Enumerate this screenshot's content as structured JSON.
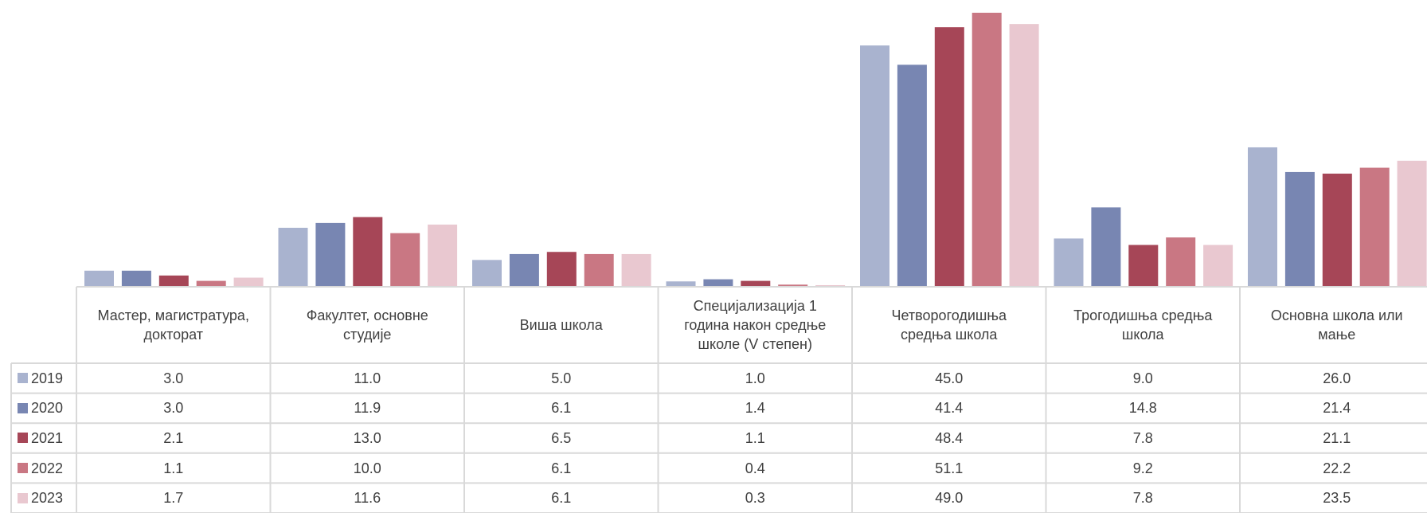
{
  "chart_data": {
    "type": "bar",
    "categories": [
      "Мастер, магистратура, докторат",
      "Факултет, основне студије",
      "Виша школа",
      "Специјализација 1 година након средње школе (V степен)",
      "Четворогодишња средња школа",
      "Трогодишња средња школа",
      "Основна школа или мање"
    ],
    "series": [
      {
        "name": "2019",
        "color": "#a9b3cf",
        "values": [
          3.0,
          11.0,
          5.0,
          1.0,
          45.0,
          9.0,
          26.0
        ],
        "value_labels": [
          "3.0",
          "11.0",
          "5.0",
          "1.0",
          "45.0",
          "9.0",
          "26.0"
        ]
      },
      {
        "name": "2020",
        "color": "#7886b2",
        "values": [
          3.0,
          11.9,
          6.1,
          1.4,
          41.4,
          14.8,
          21.4
        ],
        "value_labels": [
          "3.0",
          "11.9",
          "6.1",
          "1.4",
          "41.4",
          "14.8",
          "21.4"
        ]
      },
      {
        "name": "2021",
        "color": "#a64657",
        "values": [
          2.1,
          13.0,
          6.5,
          1.1,
          48.4,
          7.8,
          21.1
        ],
        "value_labels": [
          "2.1",
          "13.0",
          "6.5",
          "1.1",
          "48.4",
          "7.8",
          "21.1"
        ]
      },
      {
        "name": "2022",
        "color": "#c97783",
        "values": [
          1.1,
          10.0,
          6.1,
          0.4,
          51.1,
          9.2,
          22.2
        ],
        "value_labels": [
          "1.1",
          "10.0",
          "6.1",
          "0.4",
          "51.1",
          "9.2",
          "22.2"
        ]
      },
      {
        "name": "2023",
        "color": "#e9c8d0",
        "values": [
          1.7,
          11.6,
          6.1,
          0.3,
          49.0,
          7.8,
          23.5
        ],
        "value_labels": [
          "1.7",
          "11.6",
          "6.1",
          "0.3",
          "49.0",
          "7.8",
          "23.5"
        ]
      }
    ]
  }
}
